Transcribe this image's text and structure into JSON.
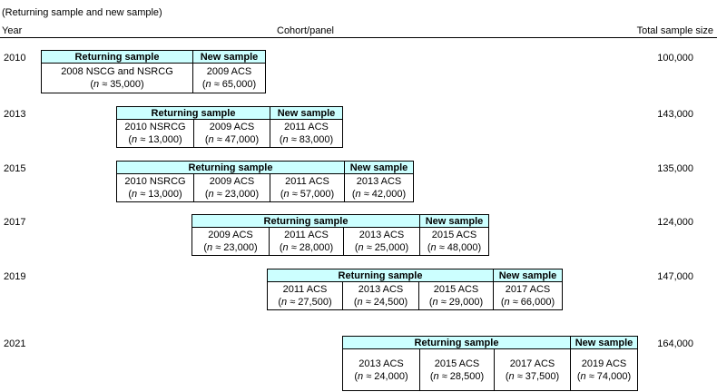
{
  "subtitle": "(Returning sample and new sample)",
  "headers": {
    "year": "Year",
    "cohort": "Cohort/panel",
    "total": "Total sample size"
  },
  "returning_label": "Returning sample",
  "new_label": "New sample",
  "rows": [
    {
      "year": "2010",
      "total": "100,000",
      "cells": [
        {
          "name": "2008 NSCG and NSRCG",
          "n": "≈ 35,000"
        },
        {
          "name": "2009 ACS",
          "n": "≈ 65,000"
        }
      ]
    },
    {
      "year": "2013",
      "total": "143,000",
      "cells": [
        {
          "name": "2010 NSRCG",
          "n": "≈ 13,000"
        },
        {
          "name": "2009 ACS",
          "n": "≈ 47,000"
        },
        {
          "name": "2011 ACS",
          "n": "≈ 83,000"
        }
      ]
    },
    {
      "year": "2015",
      "total": "135,000",
      "cells": [
        {
          "name": "2010 NSRCG",
          "n": "≈ 13,000"
        },
        {
          "name": "2009 ACS",
          "n": "≈ 23,000"
        },
        {
          "name": "2011 ACS",
          "n": "≈ 57,000"
        },
        {
          "name": "2013 ACS",
          "n": "≈ 42,000"
        }
      ]
    },
    {
      "year": "2017",
      "total": "124,000",
      "cells": [
        {
          "name": "2009 ACS",
          "n": "≈ 23,000"
        },
        {
          "name": "2011 ACS",
          "n": "≈ 28,000"
        },
        {
          "name": "2013 ACS",
          "n": "≈ 25,000"
        },
        {
          "name": "2015 ACS",
          "n": "≈ 48,000"
        }
      ]
    },
    {
      "year": "2019",
      "total": "147,000",
      "cells": [
        {
          "name": "2011 ACS",
          "n": "≈ 27,500"
        },
        {
          "name": "2013 ACS",
          "n": "≈ 24,500"
        },
        {
          "name": "2015 ACS",
          "n": "≈ 29,000"
        },
        {
          "name": "2017 ACS",
          "n": "≈ 66,000"
        }
      ]
    },
    {
      "year": "2021",
      "total": "164,000",
      "cells": [
        {
          "name": "2013 ACS",
          "n": "≈ 24,000"
        },
        {
          "name": "2015 ACS",
          "n": "≈ 28,500"
        },
        {
          "name": "2017 ACS",
          "n": "≈ 37,500"
        },
        {
          "name": "2019 ACS",
          "n": "≈ 74,000"
        }
      ]
    }
  ]
}
